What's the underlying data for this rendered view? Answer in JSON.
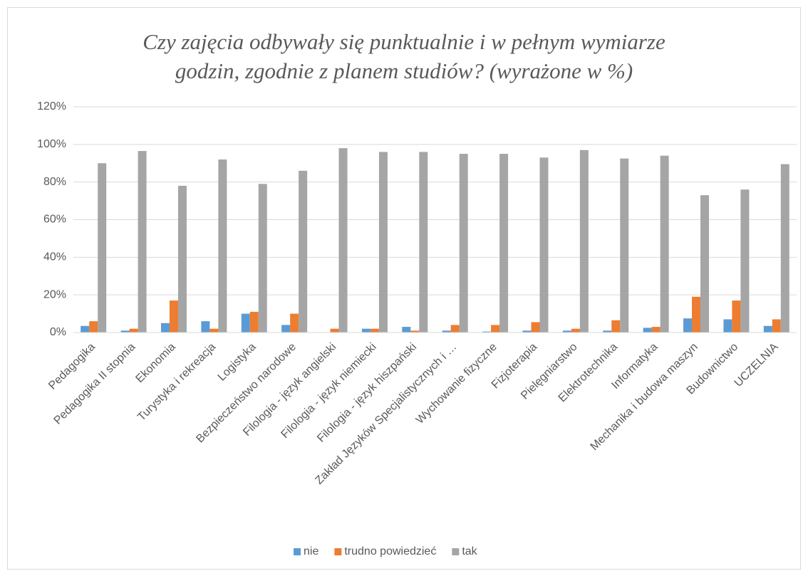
{
  "chart_data": {
    "type": "bar",
    "title": [
      "Czy zajęcia odbywały się punktualnie i w pełnym wymiarze",
      "godzin, zgodnie z planem studiów? (wyrażone w %)"
    ],
    "categories": [
      "Pedagogika",
      "Pedagogika II stopnia",
      "Ekonomia",
      "Turystyka i rekreacja",
      "Logistyka",
      "Bezpieczeństwo narodowe",
      "Filologia - język angielski",
      "Filologia - język niemiecki",
      "Filologia - język hiszpański",
      "Zakład Języków Specjalistycznych i …",
      "Wychowanie fizyczne",
      "Fizjoterapia",
      "Pielęgniarstwo",
      "Elektrotechnika",
      "Informatyka",
      "Mechanika i budowa maszyn",
      "Budownictwo",
      "UCZELNIA"
    ],
    "series": [
      {
        "name": "nie",
        "color": "#5b9bd5",
        "values": [
          3.5,
          1,
          5,
          6,
          10,
          4,
          0,
          2,
          3,
          1,
          0.5,
          1,
          1,
          1,
          2.5,
          7.5,
          7,
          3.5
        ]
      },
      {
        "name": "trudno powiedzieć",
        "color": "#ed7d31",
        "values": [
          6,
          2,
          17,
          2,
          11,
          10,
          2,
          2,
          1,
          4,
          4,
          5.5,
          2,
          6.5,
          3,
          19,
          17,
          7
        ]
      },
      {
        "name": "tak",
        "color": "#a5a5a5",
        "values": [
          90,
          96.5,
          78,
          92,
          79,
          86,
          98,
          96,
          96,
          95,
          95,
          93,
          97,
          92.5,
          94,
          73,
          76,
          89.5
        ]
      }
    ],
    "ylim": [
      0,
      120
    ],
    "yticks": [
      {
        "value": 0,
        "label": "0%"
      },
      {
        "value": 20,
        "label": "20%"
      },
      {
        "value": 40,
        "label": "40%"
      },
      {
        "value": 60,
        "label": "60%"
      },
      {
        "value": 80,
        "label": "80%"
      },
      {
        "value": 100,
        "label": "100%"
      },
      {
        "value": 120,
        "label": "120%"
      }
    ],
    "grid": true,
    "legend": "bottom"
  }
}
